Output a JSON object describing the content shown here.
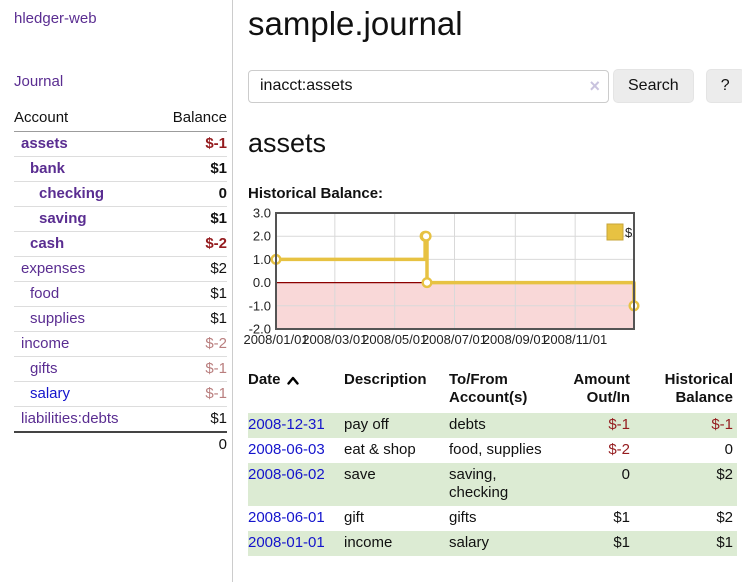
{
  "app": {
    "title": "hledger-web",
    "nav_journal": "Journal"
  },
  "colors": {
    "link_purple": "#5a2d91",
    "link_blue": "#1414cc",
    "negative": "#941b1e",
    "muted_negative": "#b97e7e",
    "row_green": "#dcebd3",
    "chart_line": "#e7c242",
    "chart_negative_region": "#f9d8d8",
    "chart_zero_line": "#8b0000"
  },
  "sidebar": {
    "table": {
      "col_account": "Account",
      "col_balance": "Balance"
    },
    "accounts": [
      {
        "name": "assets",
        "indent": 1,
        "bold": true,
        "balance": "$-1",
        "balance_style": "neg",
        "link_style": "purple"
      },
      {
        "name": "bank",
        "indent": 2,
        "bold": true,
        "balance": "$1",
        "balance_style": "plain",
        "link_style": "purple"
      },
      {
        "name": "checking",
        "indent": 3,
        "bold": true,
        "balance": "0",
        "balance_style": "plain",
        "link_style": "purple"
      },
      {
        "name": "saving",
        "indent": 3,
        "bold": true,
        "balance": "$1",
        "balance_style": "plain",
        "link_style": "purple"
      },
      {
        "name": "cash",
        "indent": 2,
        "bold": true,
        "balance": "$-2",
        "balance_style": "neg",
        "link_style": "purple"
      },
      {
        "name": "expenses",
        "indent": 1,
        "bold": false,
        "balance": "$2",
        "balance_style": "plain",
        "link_style": "purple"
      },
      {
        "name": "food",
        "indent": 2,
        "bold": false,
        "balance": "$1",
        "balance_style": "plain",
        "link_style": "purple"
      },
      {
        "name": "supplies",
        "indent": 2,
        "bold": false,
        "balance": "$1",
        "balance_style": "plain",
        "link_style": "purple"
      },
      {
        "name": "income",
        "indent": 1,
        "bold": false,
        "balance": "$-2",
        "balance_style": "mutedneg",
        "link_style": "purple"
      },
      {
        "name": "gifts",
        "indent": 2,
        "bold": false,
        "balance": "$-1",
        "balance_style": "mutedneg",
        "link_style": "purple"
      },
      {
        "name": "salary",
        "indent": 2,
        "bold": false,
        "balance": "$-1",
        "balance_style": "mutedneg",
        "link_style": "blue"
      },
      {
        "name": "liabilities:debts",
        "indent": 1,
        "bold": false,
        "balance": "$1",
        "balance_style": "plain",
        "link_style": "purple"
      }
    ],
    "total": "0"
  },
  "header": {
    "title": "sample.journal"
  },
  "search": {
    "value": "inacct:assets",
    "clear_icon": "×",
    "button_label": "Search",
    "help_label": "?"
  },
  "account_page": {
    "heading": "assets",
    "chart_label": "Historical Balance:"
  },
  "chart_data": {
    "type": "line",
    "title": "Historical Balance",
    "step": true,
    "x_range": [
      "2008/01/01",
      "2008/12/31"
    ],
    "ylim": [
      -2,
      3
    ],
    "y_ticks": [
      3.0,
      2.0,
      1.0,
      0.0,
      -1.0,
      -2.0
    ],
    "x_tick_labels": [
      "2008/01/01",
      "2008/03/01",
      "2008/05/01",
      "2008/07/01",
      "2008/09/01",
      "2008/11/01"
    ],
    "series": [
      {
        "name": "$",
        "points": [
          {
            "x": "2008/01/01",
            "y": 1
          },
          {
            "x": "2008/06/01",
            "y": 2
          },
          {
            "x": "2008/06/02",
            "y": 2
          },
          {
            "x": "2008/06/03",
            "y": 0
          },
          {
            "x": "2008/12/31",
            "y": -1
          }
        ]
      }
    ],
    "legend_position": "top-right",
    "grid": true,
    "line_color": "#e7c242",
    "negative_region_color": "#f9d8d8",
    "zero_line_color": "#8b0000"
  },
  "register": {
    "columns": [
      {
        "label": "Date",
        "align": "left",
        "sortable": true
      },
      {
        "label": "Description",
        "align": "left"
      },
      {
        "label": "To/From Account(s)",
        "align": "left"
      },
      {
        "label": "Amount Out/In",
        "align": "right"
      },
      {
        "label": "Historical Balance",
        "align": "right"
      }
    ],
    "rows": [
      {
        "date": "2008-12-31",
        "description": "pay off",
        "accounts": "debts",
        "amount": "$-1",
        "amount_negative": true,
        "balance": "$-1",
        "balance_negative": true,
        "shaded": true
      },
      {
        "date": "2008-06-03",
        "description": "eat & shop",
        "accounts": "food, supplies",
        "amount": "$-2",
        "amount_negative": true,
        "balance": "0",
        "balance_negative": false,
        "shaded": false
      },
      {
        "date": "2008-06-02",
        "description": "save",
        "accounts": "saving, checking",
        "amount": "0",
        "amount_negative": false,
        "balance": "$2",
        "balance_negative": false,
        "shaded": true
      },
      {
        "date": "2008-06-01",
        "description": "gift",
        "accounts": "gifts",
        "amount": "$1",
        "amount_negative": false,
        "balance": "$2",
        "balance_negative": false,
        "shaded": false
      },
      {
        "date": "2008-01-01",
        "description": "income",
        "accounts": "salary",
        "amount": "$1",
        "amount_negative": false,
        "balance": "$1",
        "balance_negative": false,
        "shaded": true
      }
    ]
  }
}
